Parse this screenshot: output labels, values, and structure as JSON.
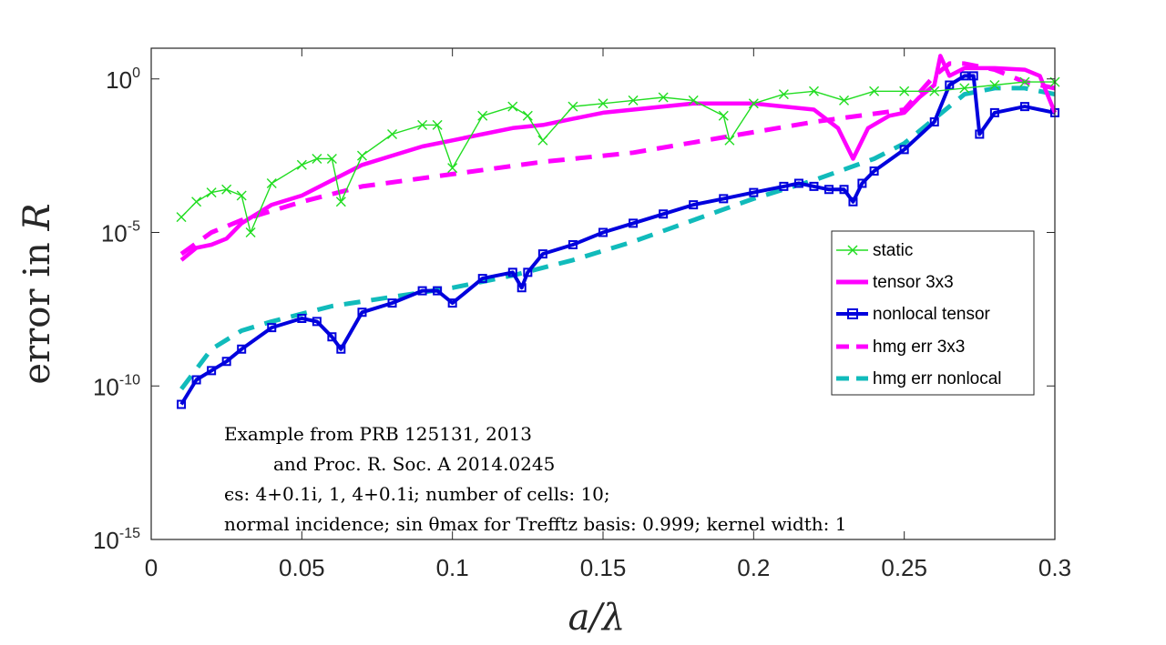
{
  "chart_data": {
    "type": "line",
    "yscale": "log",
    "xlim": [
      0,
      0.3
    ],
    "ylim_exponent": [
      -15,
      1
    ],
    "xlabel": "a/λ",
    "ylabel_prefix": "error in ",
    "ylabel_var": "R",
    "xticks": [
      "0",
      "0.05",
      "0.1",
      "0.15",
      "0.2",
      "0.25",
      "0.3"
    ],
    "xtick_values": [
      0,
      0.05,
      0.1,
      0.15,
      0.2,
      0.25,
      0.3
    ],
    "yticks": [
      {
        "base": "10",
        "exp": "0",
        "value": 0
      },
      {
        "base": "10",
        "exp": "-5",
        "value": -5
      },
      {
        "base": "10",
        "exp": "-10",
        "value": -10
      },
      {
        "base": "10",
        "exp": "-15",
        "value": -15
      }
    ],
    "legend": [
      "static",
      "tensor 3x3",
      "nonlocal tensor",
      "hmg err 3x3",
      "hmg err nonlocal"
    ],
    "colors": {
      "static": "#22dd22",
      "tensor": "#ff00ff",
      "nonlocal": "#0000dd",
      "hmg3": "#ff00ff",
      "hmgnl": "#11bbbb"
    },
    "series": [
      {
        "name": "static",
        "style": "x-marker",
        "x": [
          0.01,
          0.015,
          0.02,
          0.025,
          0.03,
          0.033,
          0.04,
          0.05,
          0.055,
          0.06,
          0.063,
          0.07,
          0.08,
          0.09,
          0.095,
          0.1,
          0.11,
          0.12,
          0.125,
          0.13,
          0.14,
          0.15,
          0.16,
          0.17,
          0.18,
          0.19,
          0.192,
          0.2,
          0.21,
          0.22,
          0.23,
          0.24,
          0.25,
          0.26,
          0.27,
          0.28,
          0.29,
          0.3
        ],
        "y": [
          -4.5,
          -4.0,
          -3.7,
          -3.6,
          -3.8,
          -5.0,
          -3.4,
          -2.8,
          -2.6,
          -2.6,
          -4.0,
          -2.5,
          -1.8,
          -1.5,
          -1.5,
          -2.9,
          -1.2,
          -0.9,
          -1.2,
          -2.0,
          -0.9,
          -0.8,
          -0.7,
          -0.6,
          -0.7,
          -1.2,
          -2.0,
          -0.8,
          -0.5,
          -0.4,
          -0.7,
          -0.4,
          -0.4,
          -0.4,
          -0.3,
          -0.2,
          -0.1,
          -0.1
        ]
      },
      {
        "name": "tensor 3x3",
        "style": "solid",
        "x": [
          0.01,
          0.015,
          0.02,
          0.025,
          0.03,
          0.04,
          0.05,
          0.06,
          0.07,
          0.08,
          0.09,
          0.1,
          0.11,
          0.12,
          0.13,
          0.14,
          0.15,
          0.16,
          0.17,
          0.18,
          0.19,
          0.2,
          0.21,
          0.22,
          0.228,
          0.233,
          0.238,
          0.245,
          0.25,
          0.255,
          0.26,
          0.262,
          0.265,
          0.27,
          0.28,
          0.29,
          0.295,
          0.3
        ],
        "y": [
          -5.9,
          -5.5,
          -5.4,
          -5.2,
          -4.7,
          -4.1,
          -3.8,
          -3.3,
          -2.8,
          -2.5,
          -2.2,
          -2.0,
          -1.8,
          -1.6,
          -1.5,
          -1.3,
          -1.1,
          -1.0,
          -0.9,
          -0.8,
          -0.8,
          -0.8,
          -0.9,
          -1.0,
          -1.6,
          -2.6,
          -1.6,
          -1.2,
          -1.1,
          -0.6,
          -0.2,
          0.75,
          0.1,
          0.35,
          0.35,
          0.3,
          0.1,
          -1.1
        ]
      },
      {
        "name": "nonlocal tensor",
        "style": "square-marker",
        "x": [
          0.01,
          0.015,
          0.02,
          0.025,
          0.03,
          0.04,
          0.05,
          0.055,
          0.06,
          0.063,
          0.07,
          0.08,
          0.09,
          0.095,
          0.1,
          0.11,
          0.12,
          0.123,
          0.125,
          0.13,
          0.14,
          0.15,
          0.16,
          0.17,
          0.18,
          0.19,
          0.2,
          0.21,
          0.215,
          0.22,
          0.225,
          0.23,
          0.233,
          0.236,
          0.24,
          0.25,
          0.26,
          0.265,
          0.27,
          0.273,
          0.275,
          0.28,
          0.29,
          0.3
        ],
        "y": [
          -10.6,
          -9.8,
          -9.5,
          -9.2,
          -8.8,
          -8.1,
          -7.8,
          -7.9,
          -8.4,
          -8.8,
          -7.6,
          -7.3,
          -6.9,
          -6.9,
          -7.3,
          -6.5,
          -6.3,
          -6.8,
          -6.3,
          -5.7,
          -5.4,
          -5.0,
          -4.7,
          -4.4,
          -4.1,
          -3.9,
          -3.7,
          -3.5,
          -3.4,
          -3.5,
          -3.6,
          -3.6,
          -4.0,
          -3.4,
          -3.0,
          -2.3,
          -1.4,
          -0.2,
          0.1,
          0.1,
          -1.8,
          -1.1,
          -0.9,
          -1.1
        ]
      },
      {
        "name": "hmg err 3x3",
        "style": "dashed",
        "x": [
          0.01,
          0.02,
          0.03,
          0.05,
          0.07,
          0.1,
          0.13,
          0.16,
          0.19,
          0.22,
          0.25,
          0.26,
          0.265,
          0.27,
          0.28,
          0.29,
          0.3
        ],
        "y": [
          -5.7,
          -5.0,
          -4.6,
          -4.0,
          -3.5,
          -3.1,
          -2.7,
          -2.4,
          -1.9,
          -1.4,
          -1.0,
          0.1,
          0.5,
          0.5,
          0.3,
          -0.1,
          -0.3
        ]
      },
      {
        "name": "hmg err nonlocal",
        "style": "dashed",
        "x": [
          0.01,
          0.02,
          0.03,
          0.04,
          0.06,
          0.08,
          0.1,
          0.12,
          0.14,
          0.16,
          0.18,
          0.2,
          0.22,
          0.24,
          0.25,
          0.26,
          0.27,
          0.28,
          0.29,
          0.3
        ],
        "y": [
          -10.1,
          -8.8,
          -8.2,
          -7.9,
          -7.4,
          -7.1,
          -6.8,
          -6.4,
          -5.9,
          -5.3,
          -4.6,
          -3.9,
          -3.3,
          -2.6,
          -2.1,
          -1.3,
          -0.5,
          -0.3,
          -0.3,
          -0.5
        ]
      }
    ],
    "annotations": [
      "Example from PRB 125131, 2013",
      "and Proc. R. Soc. A 2014.0245",
      "ϵs: 4+0.1i, 1, 4+0.1i; number of cells: 10;",
      "normal incidence; sin θmax for Trefftz basis: 0.999; kernel width: 1"
    ]
  }
}
